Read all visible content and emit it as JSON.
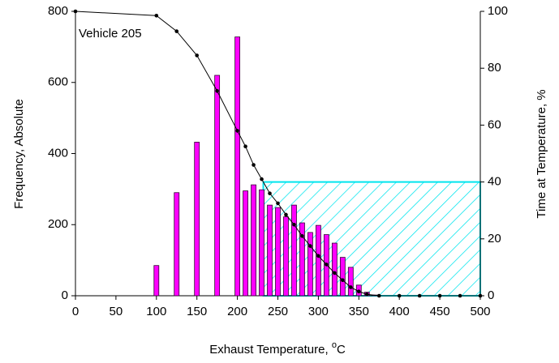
{
  "chart_data": {
    "type": "bar",
    "annotation": "Vehicle 205",
    "ylabel": "Frequency, Absolute",
    "y2label": "Time at Temperature, %",
    "xlabel": {
      "text": "Exhaust Temperature,",
      "sup": "o",
      "unit": "C"
    },
    "xlim": [
      0,
      500
    ],
    "xticks": [
      0,
      50,
      100,
      150,
      200,
      250,
      300,
      350,
      400,
      450,
      500
    ],
    "ylim": [
      0,
      800
    ],
    "yticks": [
      0,
      200,
      400,
      600,
      800
    ],
    "y2lim": [
      0,
      100
    ],
    "y2ticks": [
      0,
      20,
      40,
      60,
      80,
      100
    ],
    "grid": false,
    "highlight": {
      "x0": 232,
      "x1": 500,
      "y2": 40,
      "color": "#00e5ee"
    },
    "series": [
      {
        "type": "bar",
        "color": "#ff00ff",
        "edge": "#330033",
        "x": [
          100,
          125,
          150,
          175,
          200,
          210,
          220,
          230,
          240,
          250,
          260,
          270,
          280,
          290,
          300,
          310,
          320,
          330,
          340,
          350,
          360,
          370
        ],
        "values": [
          85,
          290,
          432,
          620,
          728,
          295,
          312,
          298,
          255,
          248,
          222,
          255,
          205,
          178,
          198,
          172,
          148,
          108,
          80,
          30,
          10,
          2
        ]
      },
      {
        "type": "line",
        "axis": "y2",
        "color": "#000000",
        "x": [
          0,
          100,
          125,
          150,
          175,
          200,
          210,
          220,
          230,
          240,
          250,
          260,
          270,
          280,
          290,
          300,
          310,
          320,
          330,
          340,
          350,
          360,
          375,
          400,
          425,
          450,
          475,
          500
        ],
        "values": [
          100,
          98.5,
          93,
          84.5,
          72,
          58,
          52.5,
          46,
          41,
          36,
          32.5,
          28.5,
          25,
          21,
          17.5,
          14,
          11,
          8,
          5.5,
          3,
          1.5,
          0.5,
          0,
          0,
          0,
          0,
          0,
          0
        ]
      }
    ]
  }
}
